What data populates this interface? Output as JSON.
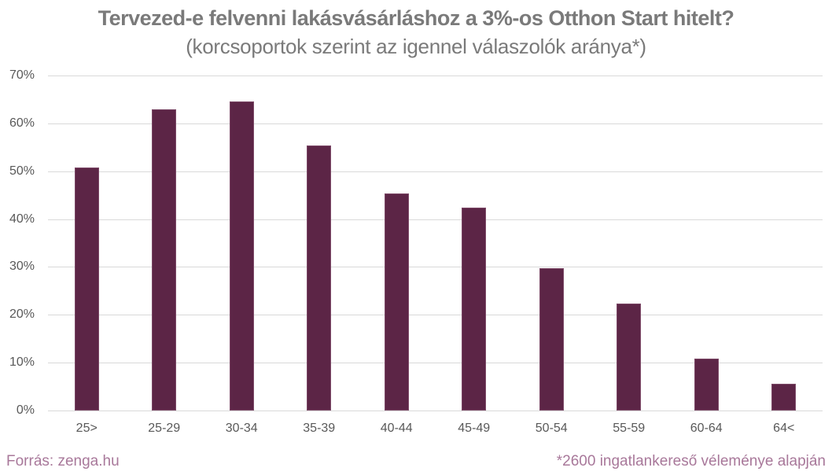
{
  "title": "Tervezed-e felvenni lakásvásárláshoz a 3%-os Otthon Start hitelt?",
  "subtitle": "(korcsoportok szerint az igennel válaszolók aránya*)",
  "footer": {
    "source": "Forrás: zenga.hu",
    "note": "*2600 ingatlankereső véleménye alapján"
  },
  "colors": {
    "bar": "#5c2546",
    "title": "#7a7a7a",
    "footer": "#a8789a",
    "grid": "#d9d9d9"
  },
  "chart_data": {
    "type": "bar",
    "title": "Tervezed-e felvenni lakásvásárláshoz a 3%-os Otthon Start hitelt?",
    "subtitle": "(korcsoportok szerint az igennel válaszolók aránya*)",
    "xlabel": "",
    "ylabel": "",
    "categories": [
      "25>",
      "25-29",
      "30-34",
      "35-39",
      "40-44",
      "45-49",
      "50-54",
      "55-59",
      "60-64",
      "64<"
    ],
    "values": [
      50.8,
      62.9,
      64.6,
      55.4,
      45.3,
      42.4,
      29.7,
      22.3,
      10.8,
      5.6
    ],
    "ylim": [
      0,
      70
    ],
    "yticks": [
      "0%",
      "10%",
      "20%",
      "30%",
      "40%",
      "50%",
      "60%",
      "70%"
    ],
    "grid": true,
    "legend": "none",
    "unit": "%"
  }
}
